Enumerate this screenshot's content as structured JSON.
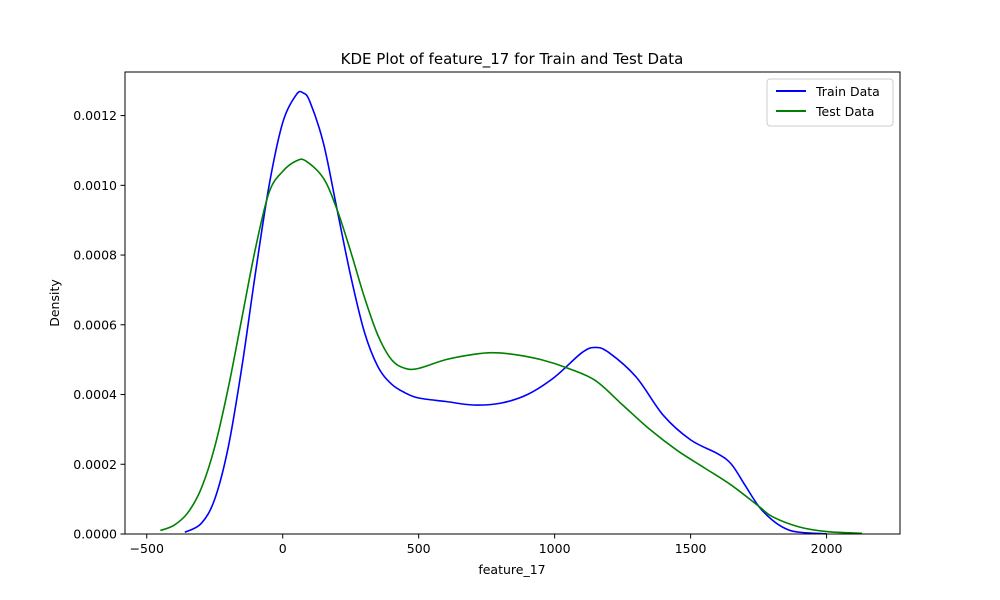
{
  "chart_data": {
    "type": "line",
    "title": "KDE Plot of feature_17 for Train and Test Data",
    "xlabel": "feature_17",
    "ylabel": "Density",
    "xlim": [
      -580,
      2270
    ],
    "ylim": [
      0,
      0.001325
    ],
    "xticks": [
      -500,
      0,
      500,
      1000,
      1500,
      2000
    ],
    "xtick_labels": [
      "−500",
      "0",
      "500",
      "1000",
      "1500",
      "2000"
    ],
    "yticks": [
      0,
      0.0002,
      0.0004,
      0.0006,
      0.0008,
      0.001,
      0.0012
    ],
    "ytick_labels": [
      "0.0000",
      "0.0002",
      "0.0004",
      "0.0006",
      "0.0008",
      "0.0010",
      "0.0012"
    ],
    "grid": false,
    "legend_position": "top-right",
    "series": [
      {
        "name": "Train Data",
        "color": "#0000ff",
        "points": [
          [
            -360,
            5e-06
          ],
          [
            -300,
            3e-05
          ],
          [
            -250,
            0.0001
          ],
          [
            -200,
            0.00025
          ],
          [
            -150,
            0.00048
          ],
          [
            -100,
            0.00075
          ],
          [
            -50,
            0.001
          ],
          [
            0,
            0.00118
          ],
          [
            50,
            0.00126
          ],
          [
            75,
            0.001265
          ],
          [
            100,
            0.00124
          ],
          [
            150,
            0.00112
          ],
          [
            200,
            0.00093
          ],
          [
            250,
            0.00074
          ],
          [
            300,
            0.00058
          ],
          [
            350,
            0.00048
          ],
          [
            400,
            0.00043
          ],
          [
            450,
            0.000405
          ],
          [
            500,
            0.00039
          ],
          [
            600,
            0.00038
          ],
          [
            700,
            0.00037
          ],
          [
            800,
            0.000375
          ],
          [
            900,
            0.0004
          ],
          [
            1000,
            0.00045
          ],
          [
            1100,
            0.00052
          ],
          [
            1150,
            0.000535
          ],
          [
            1200,
            0.00052
          ],
          [
            1300,
            0.00045
          ],
          [
            1400,
            0.00034
          ],
          [
            1500,
            0.00027
          ],
          [
            1600,
            0.00023
          ],
          [
            1650,
            0.0002
          ],
          [
            1700,
            0.00014
          ],
          [
            1750,
            8e-05
          ],
          [
            1800,
            4e-05
          ],
          [
            1850,
            1.5e-05
          ],
          [
            1900,
            5e-06
          ],
          [
            2000,
            5e-07
          ]
        ]
      },
      {
        "name": "Test Data",
        "color": "#008000",
        "points": [
          [
            -450,
            1e-05
          ],
          [
            -400,
            2.5e-05
          ],
          [
            -350,
            6e-05
          ],
          [
            -300,
            0.00013
          ],
          [
            -250,
            0.00025
          ],
          [
            -200,
            0.00042
          ],
          [
            -150,
            0.00062
          ],
          [
            -100,
            0.00082
          ],
          [
            -50,
            0.00098
          ],
          [
            0,
            0.00104
          ],
          [
            50,
            0.00107
          ],
          [
            85,
            0.00107
          ],
          [
            150,
            0.00102
          ],
          [
            200,
            0.00093
          ],
          [
            250,
            0.00081
          ],
          [
            300,
            0.00068
          ],
          [
            350,
            0.00057
          ],
          [
            400,
            0.0005
          ],
          [
            450,
            0.000475
          ],
          [
            500,
            0.000475
          ],
          [
            600,
            0.0005
          ],
          [
            700,
            0.000515
          ],
          [
            770,
            0.00052
          ],
          [
            850,
            0.000515
          ],
          [
            950,
            0.0005
          ],
          [
            1050,
            0.000475
          ],
          [
            1150,
            0.00044
          ],
          [
            1250,
            0.00037
          ],
          [
            1350,
            0.0003
          ],
          [
            1450,
            0.00024
          ],
          [
            1550,
            0.00019
          ],
          [
            1650,
            0.00014
          ],
          [
            1750,
            8e-05
          ],
          [
            1800,
            5e-05
          ],
          [
            1900,
            2e-05
          ],
          [
            2000,
            7e-06
          ],
          [
            2130,
            2e-06
          ]
        ]
      }
    ]
  }
}
